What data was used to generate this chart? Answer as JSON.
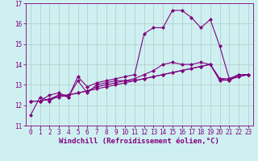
{
  "bg_color": "#cff0f0",
  "line_color": "#800080",
  "grid_color": "#b0c8c8",
  "title": "Windchill (Refroidissement éolien,°C)",
  "xlim": [
    -0.5,
    23.5
  ],
  "ylim": [
    11,
    17
  ],
  "xticks": [
    0,
    1,
    2,
    3,
    4,
    5,
    6,
    7,
    8,
    9,
    10,
    11,
    12,
    13,
    14,
    15,
    16,
    17,
    18,
    19,
    20,
    21,
    22,
    23
  ],
  "yticks": [
    11,
    12,
    13,
    14,
    15,
    16,
    17
  ],
  "series": [
    [
      11.5,
      12.4,
      12.2,
      12.5,
      12.4,
      13.4,
      12.9,
      13.1,
      13.2,
      13.3,
      13.4,
      13.5,
      15.5,
      15.8,
      15.8,
      16.65,
      16.65,
      16.3,
      15.8,
      16.2,
      14.9,
      13.3,
      13.5,
      13.5
    ],
    [
      12.2,
      12.2,
      12.5,
      12.6,
      12.4,
      13.2,
      12.6,
      13.0,
      13.1,
      13.2,
      13.2,
      13.3,
      13.5,
      13.7,
      14.0,
      14.1,
      14.0,
      14.0,
      14.1,
      14.0,
      13.3,
      13.2,
      13.5,
      13.5
    ],
    [
      12.2,
      12.2,
      12.3,
      12.5,
      12.5,
      12.6,
      12.7,
      12.9,
      13.0,
      13.1,
      13.2,
      13.2,
      13.3,
      13.4,
      13.5,
      13.6,
      13.7,
      13.8,
      13.9,
      14.0,
      13.2,
      13.25,
      13.4,
      13.5
    ],
    [
      12.2,
      12.2,
      12.3,
      12.4,
      12.5,
      12.6,
      12.7,
      12.8,
      12.9,
      13.0,
      13.1,
      13.2,
      13.3,
      13.4,
      13.5,
      13.6,
      13.7,
      13.8,
      13.9,
      14.0,
      13.3,
      13.3,
      13.4,
      13.5
    ]
  ],
  "marker": "D",
  "marker_size": 2.0,
  "linewidth": 0.8,
  "tick_fontsize": 5.5,
  "xlabel_fontsize": 6.5
}
